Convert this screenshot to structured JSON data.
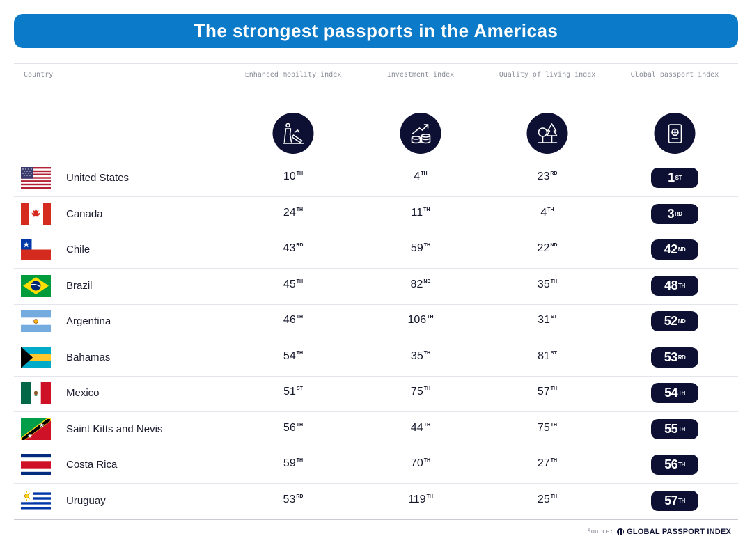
{
  "title": "The strongest passports in the Americas",
  "headers": {
    "country": "Country",
    "mobility": "Enhanced mobility index",
    "investment": "Investment index",
    "living": "Quality of living index",
    "global": "Global passport index"
  },
  "header_icons": {
    "mobility": "traveler-luggage-icon",
    "investment": "growth-coins-icon",
    "living": "trees-icon",
    "global": "passport-icon"
  },
  "rows": [
    {
      "country": "United States",
      "flag": "us-flag-icon",
      "mobility": {
        "n": "10",
        "s": "TH"
      },
      "investment": {
        "n": "4",
        "s": "TH"
      },
      "living": {
        "n": "23",
        "s": "RD"
      },
      "global": {
        "n": "1",
        "s": "ST"
      }
    },
    {
      "country": "Canada",
      "flag": "canada-flag-icon",
      "mobility": {
        "n": "24",
        "s": "TH"
      },
      "investment": {
        "n": "11",
        "s": "TH"
      },
      "living": {
        "n": "4",
        "s": "TH"
      },
      "global": {
        "n": "3",
        "s": "RD"
      }
    },
    {
      "country": "Chile",
      "flag": "chile-flag-icon",
      "mobility": {
        "n": "43",
        "s": "RD"
      },
      "investment": {
        "n": "59",
        "s": "TH"
      },
      "living": {
        "n": "22",
        "s": "ND"
      },
      "global": {
        "n": "42",
        "s": "ND"
      }
    },
    {
      "country": "Brazil",
      "flag": "brazil-flag-icon",
      "mobility": {
        "n": "45",
        "s": "TH"
      },
      "investment": {
        "n": "82",
        "s": "ND"
      },
      "living": {
        "n": "35",
        "s": "TH"
      },
      "global": {
        "n": "48",
        "s": "TH"
      }
    },
    {
      "country": "Argentina",
      "flag": "argentina-flag-icon",
      "mobility": {
        "n": "46",
        "s": "TH"
      },
      "investment": {
        "n": "106",
        "s": "TH"
      },
      "living": {
        "n": "31",
        "s": "ST"
      },
      "global": {
        "n": "52",
        "s": "ND"
      }
    },
    {
      "country": "Bahamas",
      "flag": "bahamas-flag-icon",
      "mobility": {
        "n": "54",
        "s": "TH"
      },
      "investment": {
        "n": "35",
        "s": "TH"
      },
      "living": {
        "n": "81",
        "s": "ST"
      },
      "global": {
        "n": "53",
        "s": "RD"
      }
    },
    {
      "country": "Mexico",
      "flag": "mexico-flag-icon",
      "mobility": {
        "n": "51",
        "s": "ST"
      },
      "investment": {
        "n": "75",
        "s": "TH"
      },
      "living": {
        "n": "57",
        "s": "TH"
      },
      "global": {
        "n": "54",
        "s": "TH"
      }
    },
    {
      "country": "Saint Kitts and Nevis",
      "flag": "saint-kitts-flag-icon",
      "mobility": {
        "n": "56",
        "s": "TH"
      },
      "investment": {
        "n": "44",
        "s": "TH"
      },
      "living": {
        "n": "75",
        "s": "TH"
      },
      "global": {
        "n": "55",
        "s": "TH"
      }
    },
    {
      "country": "Costa Rica",
      "flag": "costa-rica-flag-icon",
      "mobility": {
        "n": "59",
        "s": "TH"
      },
      "investment": {
        "n": "70",
        "s": "TH"
      },
      "living": {
        "n": "27",
        "s": "TH"
      },
      "global": {
        "n": "56",
        "s": "TH"
      }
    },
    {
      "country": "Uruguay",
      "flag": "uruguay-flag-icon",
      "mobility": {
        "n": "53",
        "s": "RD"
      },
      "investment": {
        "n": "119",
        "s": "TH"
      },
      "living": {
        "n": "25",
        "s": "TH"
      },
      "global": {
        "n": "57",
        "s": "TH"
      }
    }
  ],
  "source": {
    "label": "Source:",
    "brand": "GLOBAL PASSPORT INDEX"
  },
  "colors": {
    "banner": "#0b7ac8",
    "dark": "#0d1033"
  }
}
